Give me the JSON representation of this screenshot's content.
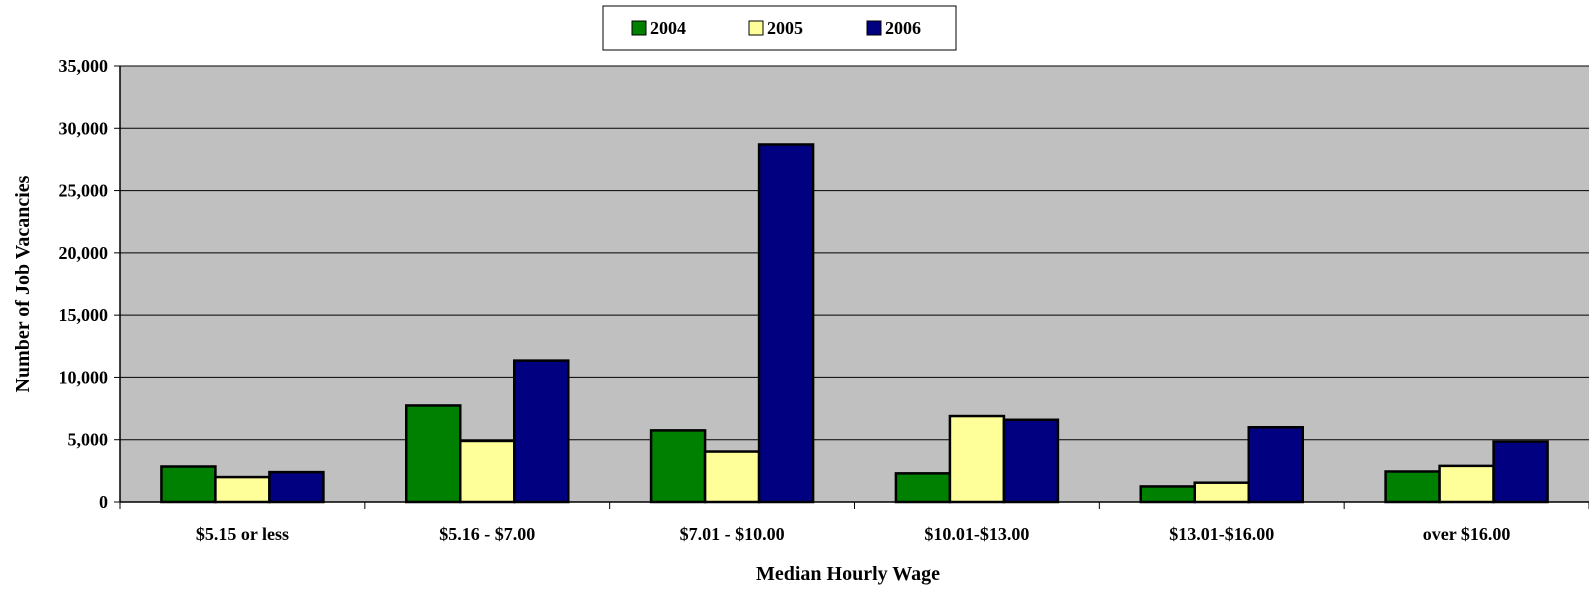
{
  "chart_data": {
    "type": "bar",
    "title": "",
    "xlabel": "Median Hourly Wage",
    "ylabel": "Number of Job Vacancies",
    "ylim": [
      0,
      35000
    ],
    "yticks": [
      0,
      5000,
      10000,
      15000,
      20000,
      25000,
      30000,
      35000
    ],
    "ytick_labels": [
      "0",
      "5,000",
      "10,000",
      "15,000",
      "20,000",
      "25,000",
      "30,000",
      "35,000"
    ],
    "categories": [
      "$5.15 or less",
      "$5.16 - $7.00",
      "$7.01 - $10.00",
      "$10.01-$13.00",
      "$13.01-$16.00",
      "over $16.00"
    ],
    "series": [
      {
        "name": "2004",
        "color": "#008000",
        "values": [
          2850,
          7750,
          5750,
          2300,
          1250,
          2450
        ]
      },
      {
        "name": "2005",
        "color": "#FFFF99",
        "values": [
          2000,
          4900,
          4050,
          6900,
          1550,
          2900
        ]
      },
      {
        "name": "2006",
        "color": "#000080",
        "values": [
          2400,
          11350,
          28700,
          6600,
          6000,
          4850
        ]
      }
    ],
    "legend_position": "top-center",
    "grid": true,
    "plot_background": "#C0C0C0"
  }
}
